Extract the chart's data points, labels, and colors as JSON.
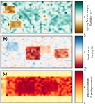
{
  "panels": [
    {
      "label": "(a)",
      "cmap": "BrBG",
      "vmin": -1,
      "vmax": 1,
      "bg": "#d4b483",
      "ticks": [
        -1,
        -0.5,
        0,
        0.5,
        1
      ],
      "ticklabels": [
        "-1",
        "",
        "0",
        "",
        "1"
      ],
      "cbar_label": "Lightning Flash rate changing\n(Flashes km⁻² yr⁻¹)"
    },
    {
      "label": "(b)",
      "cmap": "RdBu",
      "vmin": -20,
      "vmax": 20,
      "bg": "#f0f0f0",
      "ticks": [
        -20,
        -10,
        0,
        10,
        20
      ],
      "ticklabels": [
        "-20",
        "",
        "0",
        "",
        "20"
      ],
      "cbar_label": "Burned area yr⁻¹\nchanging (%)"
    },
    {
      "label": "(c)",
      "cmap": "YlOrRd",
      "vmin": 0,
      "vmax": 40,
      "bg": "#ffffaa",
      "ticks": [
        0,
        10,
        20,
        30,
        40
      ],
      "ticklabels": [
        "0",
        "",
        "20",
        "",
        "40"
      ],
      "cbar_label": "Area burned changing\n(% per degree warming)"
    }
  ],
  "figure_bg": "#ffffff"
}
